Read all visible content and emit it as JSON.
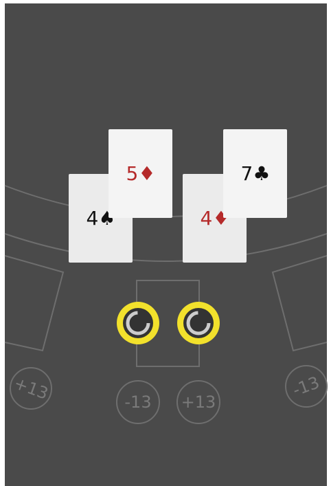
{
  "cards": [
    {
      "label": "4♠",
      "color": "#111111"
    },
    {
      "label": "5♦",
      "color": "#b52a2a"
    },
    {
      "label": "4♦",
      "color": "#b52a2a"
    },
    {
      "label": "7♣",
      "color": "#111111"
    }
  ],
  "bets": [
    "+13",
    "-13",
    "+13",
    "-13"
  ]
}
